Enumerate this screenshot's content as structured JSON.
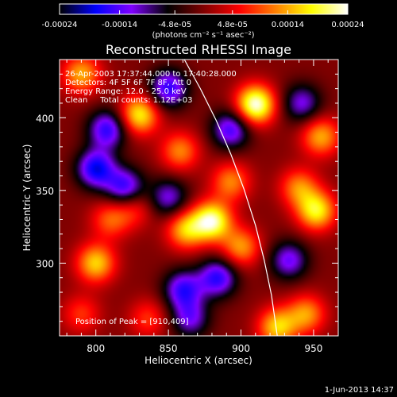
{
  "chart_data": {
    "type": "heatmap",
    "title": "Reconstructed RHESSI Image",
    "xlabel": "Heliocentric X (arcsec)",
    "ylabel": "Heliocentric Y (arcsec)",
    "xlim": [
      775,
      967
    ],
    "ylim": [
      250,
      440
    ],
    "x_ticks": [
      800,
      850,
      900,
      950
    ],
    "y_ticks": [
      300,
      350,
      400
    ],
    "colorbar": {
      "min": -0.00024,
      "max": 0.00024,
      "ticks": [
        "-0.00024",
        "-0.00014",
        "-4.8e-05",
        "4.8e-05",
        "0.00014",
        "0.00024"
      ],
      "tick_values": [
        -0.00024,
        -0.00014,
        -4.8e-05,
        4.8e-05,
        0.00014,
        0.00024
      ],
      "units": "(photons cm⁻² s⁻¹ asec⁻²)",
      "colormap": [
        "#000000",
        "#0000ff",
        "#8000ff",
        "#000000",
        "#800000",
        "#ff0000",
        "#ff8000",
        "#ffff00",
        "#ffffff"
      ]
    },
    "annotations": {
      "time_range": "26-Apr-2003 17:37:44.000 to 17:40:28.000",
      "detectors": "Detectors: 4F 5F 6F 7F 8F, Att 0",
      "energy": "Energy Range: 12.0 - 25.0 keV",
      "method": "Clean     Total counts: 1.12E+03",
      "peak": "Position of Peak = [910,409]"
    },
    "peak": [
      910,
      409
    ],
    "limb_curve": [
      [
        861,
        440
      ],
      [
        872,
        420
      ],
      [
        883,
        398
      ],
      [
        893,
        375
      ],
      [
        902,
        351
      ],
      [
        910,
        326
      ],
      [
        916,
        302
      ],
      [
        921,
        278
      ],
      [
        925,
        250
      ]
    ],
    "sources": [
      {
        "x": 910,
        "y": 409,
        "value": 0.00024
      },
      {
        "x": 880,
        "y": 329,
        "value": 0.00022
      },
      {
        "x": 862,
        "y": 323,
        "value": 0.00015
      },
      {
        "x": 830,
        "y": 402,
        "value": 0.00018
      },
      {
        "x": 790,
        "y": 430,
        "value": 0.00014
      },
      {
        "x": 952,
        "y": 336,
        "value": 0.00018
      },
      {
        "x": 955,
        "y": 387,
        "value": 0.00014
      },
      {
        "x": 940,
        "y": 352,
        "value": 0.00012
      },
      {
        "x": 925,
        "y": 256,
        "value": 0.00016
      },
      {
        "x": 945,
        "y": 265,
        "value": 0.00013
      },
      {
        "x": 800,
        "y": 300,
        "value": 0.00016
      },
      {
        "x": 790,
        "y": 265,
        "value": 8e-05
      },
      {
        "x": 858,
        "y": 377,
        "value": 0.00012
      },
      {
        "x": 836,
        "y": 262,
        "value": 8e-05
      },
      {
        "x": 826,
        "y": 338,
        "value": 8e-05
      },
      {
        "x": 810,
        "y": 330,
        "value": 0.0001
      },
      {
        "x": 893,
        "y": 356,
        "value": 0.00012
      },
      {
        "x": 900,
        "y": 311,
        "value": 0.00013
      },
      {
        "x": 820,
        "y": 352,
        "value": -0.00016
      },
      {
        "x": 800,
        "y": 365,
        "value": -0.00018
      },
      {
        "x": 850,
        "y": 420,
        "value": -0.00016
      },
      {
        "x": 893,
        "y": 392,
        "value": -0.00015
      },
      {
        "x": 884,
        "y": 290,
        "value": -0.00016
      },
      {
        "x": 808,
        "y": 392,
        "value": -0.00016
      },
      {
        "x": 860,
        "y": 282,
        "value": -0.00015
      },
      {
        "x": 942,
        "y": 410,
        "value": -0.00012
      },
      {
        "x": 933,
        "y": 302,
        "value": -0.00013
      },
      {
        "x": 850,
        "y": 345,
        "value": -0.00012
      },
      {
        "x": 865,
        "y": 262,
        "value": -0.00012
      }
    ]
  },
  "footer": {
    "timestamp": "1-Jun-2013 14:37"
  }
}
